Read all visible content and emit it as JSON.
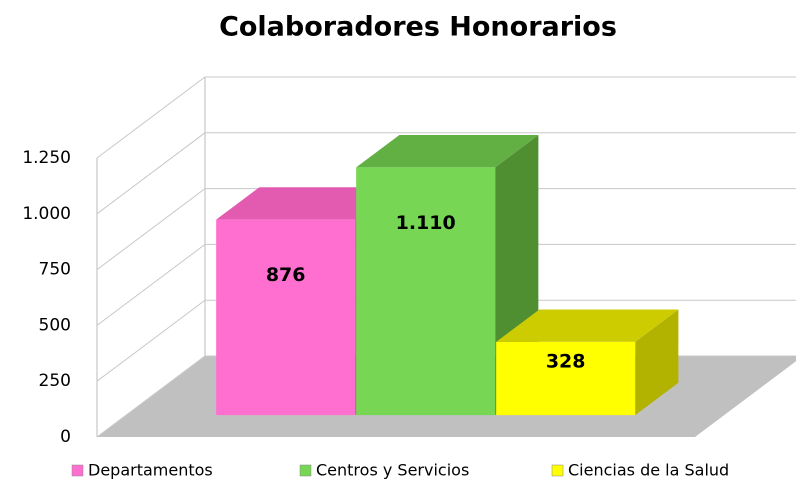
{
  "chart_data": {
    "type": "bar3d",
    "title": "Colaboradores Honorarios",
    "ylim": [
      0,
      1250
    ],
    "yticks": [
      0,
      250,
      500,
      750,
      {
        "value": 1000,
        "label": "1.000"
      },
      {
        "value": 1250,
        "label": "1.250"
      }
    ],
    "grid": true,
    "legend": "bottom",
    "series": [
      {
        "name": "Departamentos",
        "color": "#ff6fd0",
        "top": "#e35bb0",
        "side": "#c94d9a",
        "values": [
          876
        ],
        "value_labels": [
          "876"
        ]
      },
      {
        "name": "Centros y Servicios",
        "color": "#78d655",
        "top": "#62b044",
        "side": "#4f8f32",
        "values": [
          1110
        ],
        "value_labels": [
          "1.110"
        ]
      },
      {
        "name": "Ciencias de la Salud",
        "color": "#ffff00",
        "top": "#cccc00",
        "side": "#b2b200",
        "values": [
          328
        ],
        "value_labels": [
          "328"
        ]
      }
    ]
  }
}
